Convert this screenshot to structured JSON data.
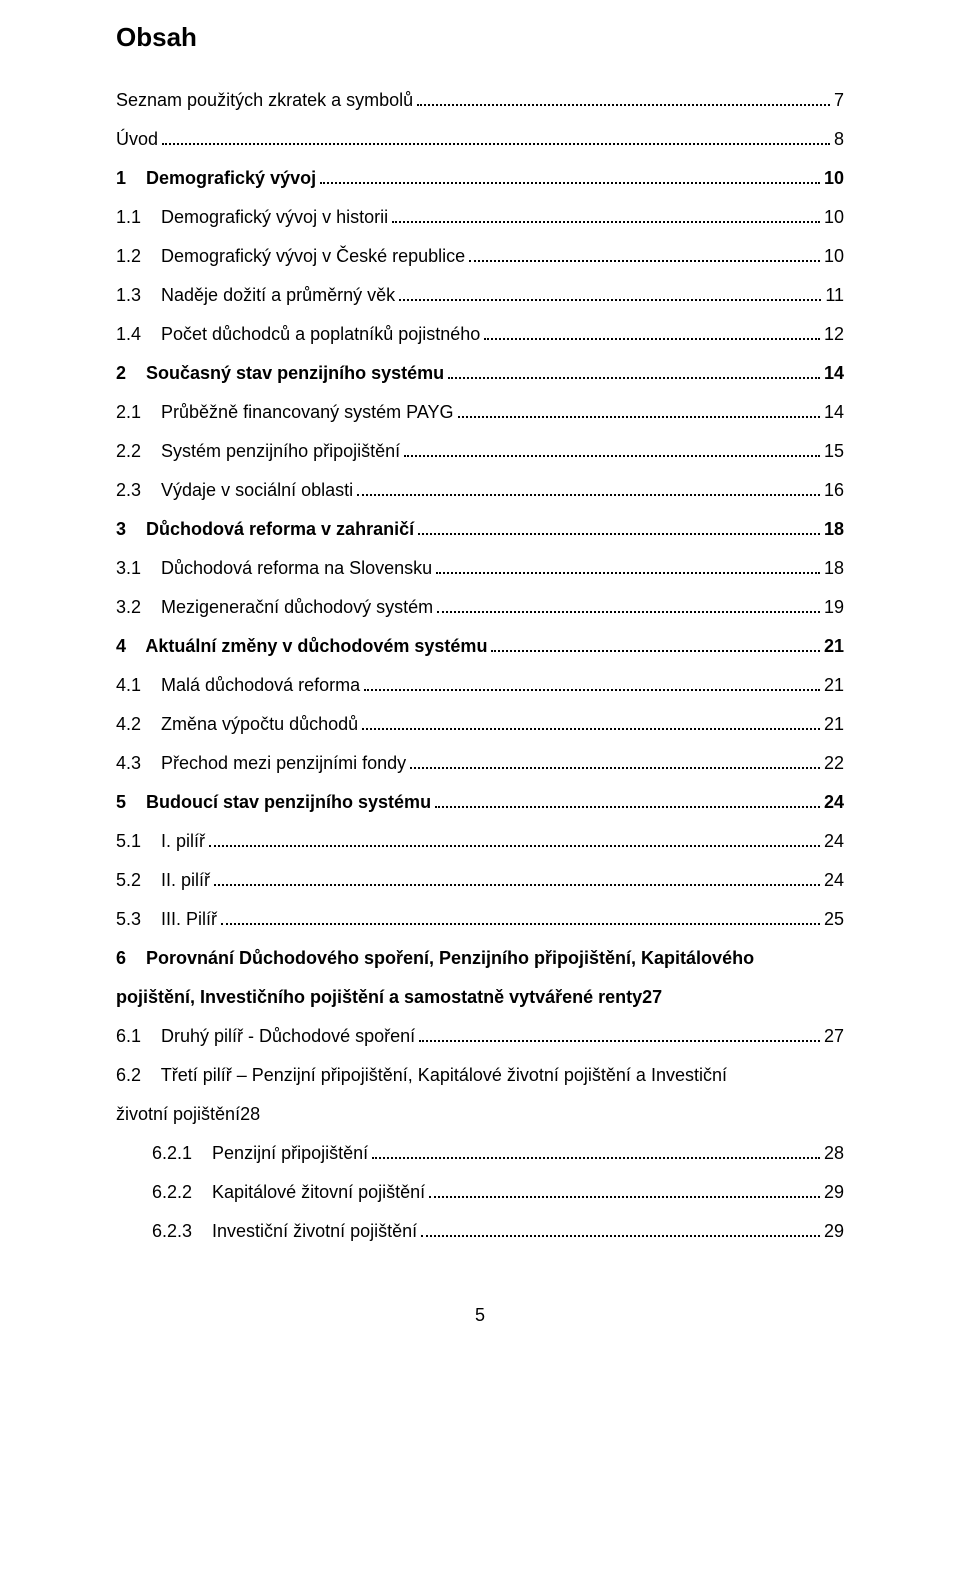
{
  "title": "Obsah",
  "pageNumber": "5",
  "entries": [
    {
      "type": "single",
      "bold": false,
      "indent": 0,
      "label": "Seznam použitých zkratek a symbolů",
      "page": "7"
    },
    {
      "type": "single",
      "bold": false,
      "indent": 0,
      "label": "Úvod",
      "page": "8"
    },
    {
      "type": "single",
      "bold": true,
      "indent": 0,
      "label": "1    Demografický vývoj",
      "page": "10"
    },
    {
      "type": "single",
      "bold": false,
      "indent": 0,
      "label": "1.1    Demografický vývoj v historii",
      "page": "10"
    },
    {
      "type": "single",
      "bold": false,
      "indent": 0,
      "label": "1.2    Demografický vývoj v České republice",
      "page": "10"
    },
    {
      "type": "single",
      "bold": false,
      "indent": 0,
      "label": "1.3    Naděje dožití a průměrný věk",
      "page": "11"
    },
    {
      "type": "single",
      "bold": false,
      "indent": 0,
      "label": "1.4    Počet důchodců a poplatníků pojistného",
      "page": "12"
    },
    {
      "type": "single",
      "bold": true,
      "indent": 0,
      "label": "2    Současný stav penzijního systému",
      "page": "14"
    },
    {
      "type": "single",
      "bold": false,
      "indent": 0,
      "label": "2.1    Průběžně financovaný systém PAYG",
      "page": "14"
    },
    {
      "type": "single",
      "bold": false,
      "indent": 0,
      "label": "2.2    Systém penzijního připojištění",
      "page": "15"
    },
    {
      "type": "single",
      "bold": false,
      "indent": 0,
      "label": "2.3    Výdaje v sociální oblasti",
      "page": "16"
    },
    {
      "type": "single",
      "bold": true,
      "indent": 0,
      "label": "3    Důchodová reforma v zahraničí",
      "page": "18"
    },
    {
      "type": "single",
      "bold": false,
      "indent": 0,
      "label": "3.1    Důchodová reforma na Slovensku",
      "page": "18"
    },
    {
      "type": "single",
      "bold": false,
      "indent": 0,
      "label": "3.2    Mezigenerační důchodový systém",
      "page": "19"
    },
    {
      "type": "single",
      "bold": true,
      "indent": 0,
      "label": "4    Aktuální změny v důchodovém systému",
      "page": "21"
    },
    {
      "type": "single",
      "bold": false,
      "indent": 0,
      "label": "4.1    Malá důchodová reforma",
      "page": "21"
    },
    {
      "type": "single",
      "bold": false,
      "indent": 0,
      "label": "4.2    Změna výpočtu důchodů",
      "page": "21"
    },
    {
      "type": "single",
      "bold": false,
      "indent": 0,
      "label": "4.3    Přechod mezi penzijními fondy",
      "page": "22"
    },
    {
      "type": "single",
      "bold": true,
      "indent": 0,
      "label": "5    Budoucí stav penzijního systému",
      "page": "24"
    },
    {
      "type": "single",
      "bold": false,
      "indent": 0,
      "label": "5.1    I. pilíř",
      "page": "24"
    },
    {
      "type": "single",
      "bold": false,
      "indent": 0,
      "label": "5.2    II. pilíř",
      "page": "24"
    },
    {
      "type": "single",
      "bold": false,
      "indent": 0,
      "label": "5.3    III. Pilíř",
      "page": "25"
    },
    {
      "type": "multi",
      "bold": true,
      "indent": 0,
      "line1": "6    Porovnání Důchodového spoření, Penzijního připojištění, Kapitálového",
      "line2": "pojištění, Investičního pojištění a samostatně vytvářené renty",
      "page": "27"
    },
    {
      "type": "single",
      "bold": false,
      "indent": 0,
      "label": "6.1    Druhý pilíř - Důchodové spoření",
      "page": "27"
    },
    {
      "type": "multi",
      "bold": false,
      "indent": 0,
      "line1": "6.2    Třetí pilíř – Penzijní připojištění, Kapitálové životní pojištění a Investiční",
      "line2": "životní pojištění",
      "page": "28"
    },
    {
      "type": "single",
      "bold": false,
      "indent": 1,
      "label": "6.2.1    Penzijní připojištění",
      "page": "28"
    },
    {
      "type": "single",
      "bold": false,
      "indent": 1,
      "label": "6.2.2    Kapitálové žitovní pojištění",
      "page": "29"
    },
    {
      "type": "single",
      "bold": false,
      "indent": 1,
      "label": "6.2.3    Investiční životní pojištění",
      "page": "29"
    }
  ]
}
